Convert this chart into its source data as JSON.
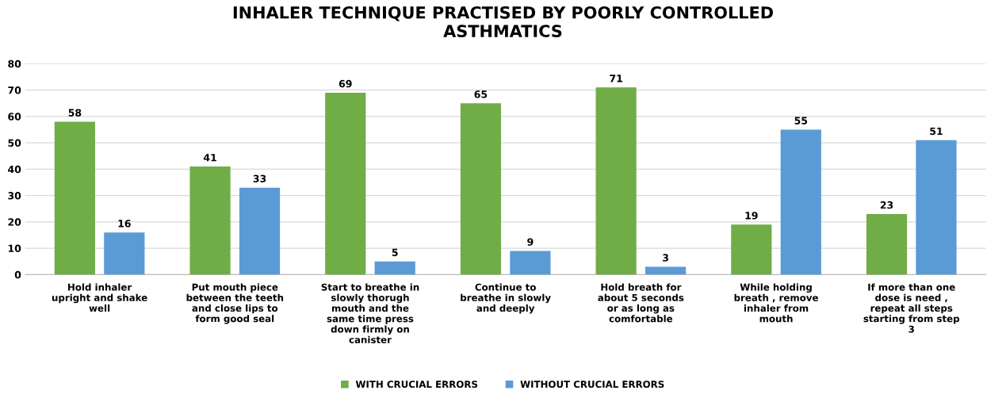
{
  "chart_data": {
    "type": "bar",
    "title": "INHALER TECHNIQUE PRACTISED BY POORLY CONTROLLED\nASTHMATICS",
    "categories": [
      "Hold inhaler\nupright and shake\nwell",
      "Put mouth piece\nbetween the teeth\nand close lips to\nform good seal",
      "Start to breathe in\nslowly thorugh\nmouth and the\nsame time press\ndown firmly on\ncanister",
      "Continue to\nbreathe in slowly\nand deeply",
      "Hold breath for\nabout 5 seconds\nor as long as\ncomfortable",
      "While holding\nbreath , remove\ninhaler from\nmouth",
      "If more than one\ndose is need ,\nrepeat all steps\nstarting from step\n3"
    ],
    "series": [
      {
        "name": "WITH CRUCIAL ERRORS",
        "color": "#70ad47",
        "values": [
          58,
          41,
          69,
          65,
          71,
          19,
          23
        ]
      },
      {
        "name": "WITHOUT CRUCIAL ERRORS",
        "color": "#5b9bd5",
        "values": [
          16,
          33,
          5,
          9,
          3,
          55,
          51
        ]
      }
    ],
    "ylim": [
      0,
      80
    ],
    "yticks": [
      0,
      10,
      20,
      30,
      40,
      50,
      60,
      70,
      80
    ],
    "grid": "y",
    "legend": "bottom",
    "data_labels": true
  }
}
